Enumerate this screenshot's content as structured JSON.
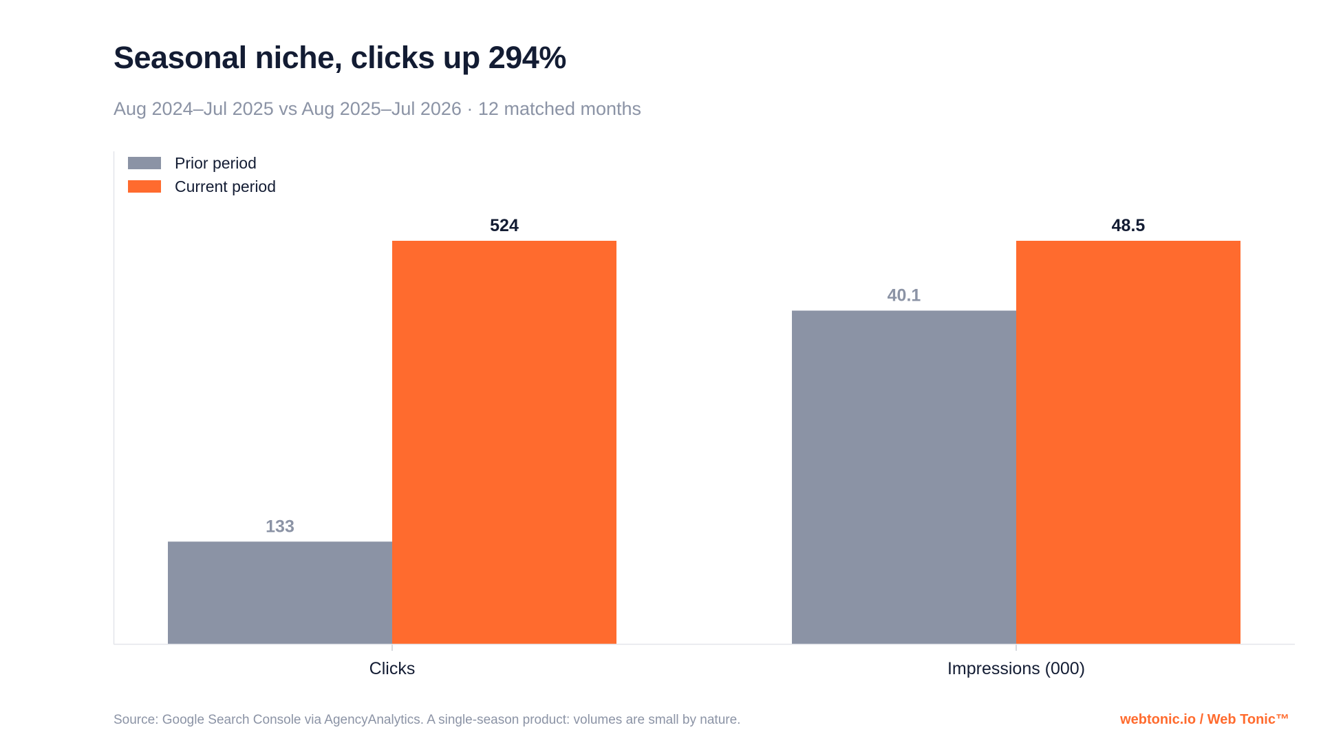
{
  "chart_data": {
    "type": "bar",
    "title": "Seasonal niche, clicks up 294%",
    "subtitle": "Aug 2024–Jul 2025 vs Aug 2025–Jul 2026 · 12 matched months",
    "categories": [
      "Clicks",
      "Impressions (000)"
    ],
    "series": [
      {
        "name": "Prior period",
        "values": [
          133,
          40.1
        ],
        "labels": [
          "133",
          "40.1"
        ],
        "color": "#8b93a5",
        "label_color": "#8b93a5"
      },
      {
        "name": "Current period",
        "values": [
          524,
          48.5
        ],
        "labels": [
          "524",
          "48.5"
        ],
        "color": "#ff6b2e",
        "label_color": "#131c33"
      }
    ],
    "normalization": "each category scaled to its own maximum",
    "grid": false,
    "legend_position": "top-left",
    "source": "Source: Google Search Console via AgencyAnalytics. A single-season product: volumes are small by nature.",
    "brand": "webtonic.io / Web Tonic™"
  }
}
